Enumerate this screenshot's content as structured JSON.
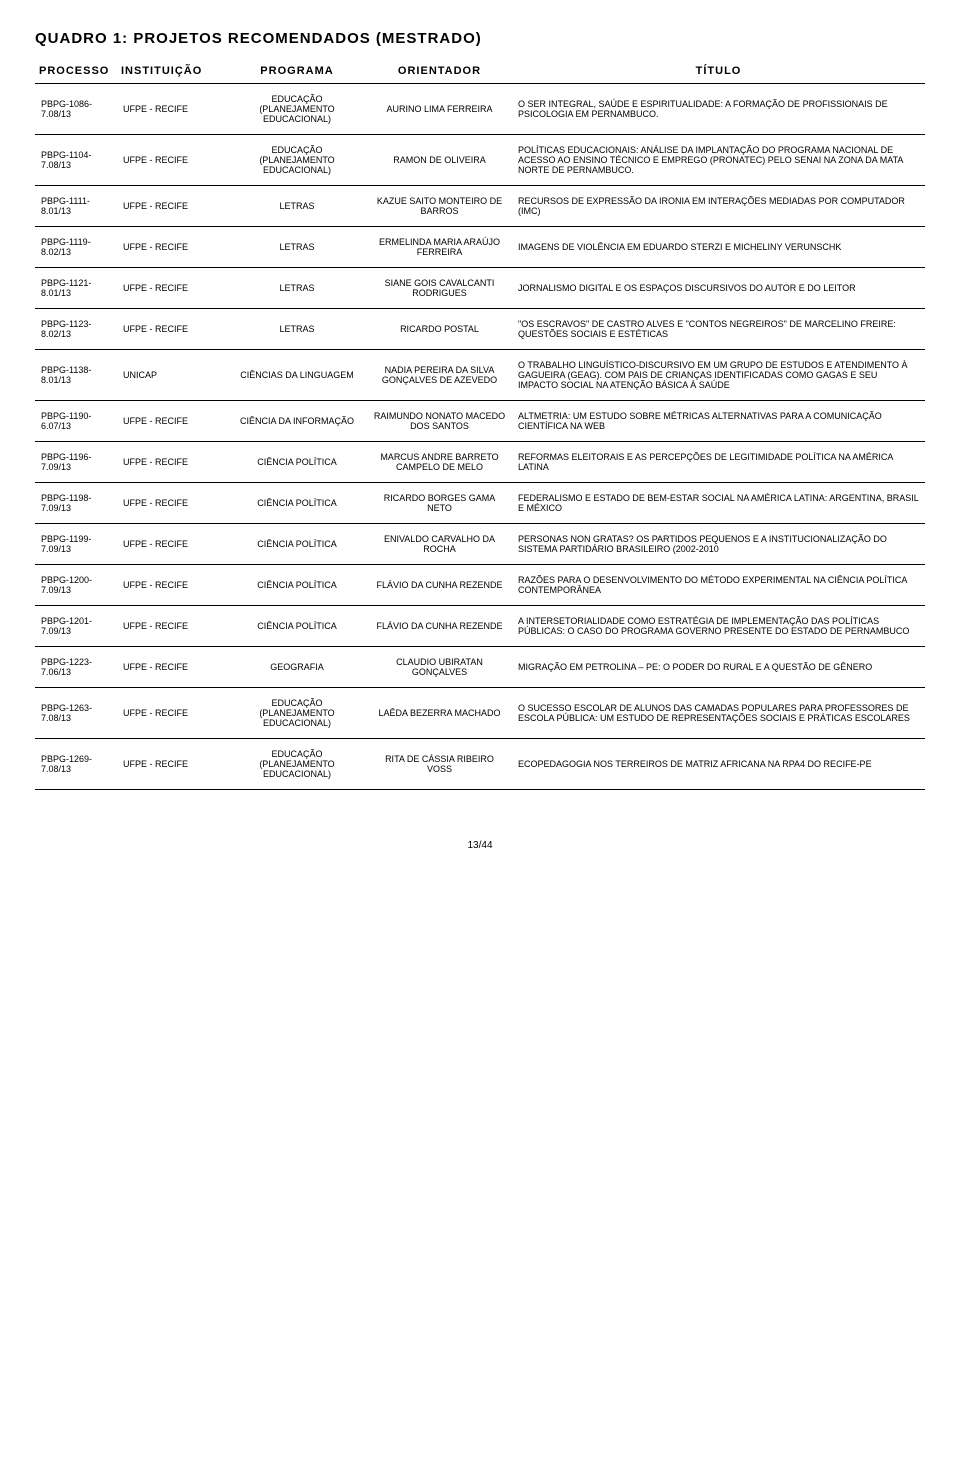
{
  "title": "QUADRO 1: PROJETOS RECOMENDADOS (MESTRADO)",
  "headers": {
    "processo": "PROCESSO",
    "instituicao": "INSTITUIÇÃO",
    "programa": "PROGRAMA",
    "orientador": "ORIENTADOR",
    "titulo": "TÍTULO"
  },
  "rows": [
    {
      "processo": "PBPG-1086-7.08/13",
      "instituicao": "UFPE - RECIFE",
      "programa": "EDUCAÇÃO (PLANEJAMENTO EDUCACIONAL)",
      "orientador": "AURINO LIMA FERREIRA",
      "titulo": "O SER INTEGRAL, SAÚDE E ESPIRITUALIDADE: A FORMAÇÃO DE PROFISSIONAIS DE PSICOLOGIA EM PERNAMBUCO."
    },
    {
      "processo": "PBPG-1104-7.08/13",
      "instituicao": "UFPE - RECIFE",
      "programa": "EDUCAÇÃO (PLANEJAMENTO EDUCACIONAL)",
      "orientador": "RAMON DE OLIVEIRA",
      "titulo": "POLÍTICAS EDUCACIONAIS: ANÁLISE DA IMPLANTAÇÃO DO PROGRAMA NACIONAL DE ACESSO AO ENSINO TÉCNICO E EMPREGO (PRONATEC) PELO SENAI NA ZONA DA MATA NORTE DE PERNAMBUCO."
    },
    {
      "processo": "PBPG-1111-8.01/13",
      "instituicao": "UFPE - RECIFE",
      "programa": "LETRAS",
      "orientador": "KAZUE SAITO MONTEIRO DE BARROS",
      "titulo": "RECURSOS DE EXPRESSÃO DA IRONIA EM INTERAÇÕES MEDIADAS POR COMPUTADOR (IMC)"
    },
    {
      "processo": "PBPG-1119-8.02/13",
      "instituicao": "UFPE - RECIFE",
      "programa": "LETRAS",
      "orientador": "ERMELINDA MARIA ARAÚJO FERREIRA",
      "titulo": "IMAGENS DE VIOLÊNCIA EM EDUARDO STERZI E MICHELINY VERUNSCHK"
    },
    {
      "processo": "PBPG-1121-8.01/13",
      "instituicao": "UFPE - RECIFE",
      "programa": "LETRAS",
      "orientador": "SIANE GOIS CAVALCANTI RODRIGUES",
      "titulo": "JORNALISMO DIGITAL E OS ESPAÇOS DISCURSIVOS DO AUTOR E DO LEITOR"
    },
    {
      "processo": "PBPG-1123-8.02/13",
      "instituicao": "UFPE - RECIFE",
      "programa": "LETRAS",
      "orientador": "RICARDO POSTAL",
      "titulo": "\"OS ESCRAVOS\" DE CASTRO ALVES E \"CONTOS NEGREIROS\" DE MARCELINO FREIRE: QUESTÕES SOCIAIS E ESTÉTICAS"
    },
    {
      "processo": "PBPG-1138-8.01/13",
      "instituicao": "UNICAP",
      "programa": "CIÊNCIAS DA LINGUAGEM",
      "orientador": "NADIA PEREIRA DA SILVA GONÇALVES DE AZEVEDO",
      "titulo": "O TRABALHO LINGUÍSTICO-DISCURSIVO EM UM GRUPO DE ESTUDOS E ATENDIMENTO À GAGUEIRA (GEAG). COM PAIS DE CRIANÇAS IDENTIFICADAS COMO GAGAS E SEU IMPACTO SOCIAL NA ATENÇÃO BÁSICA À SAÚDE"
    },
    {
      "processo": "PBPG-1190-6.07/13",
      "instituicao": "UFPE - RECIFE",
      "programa": "CIÊNCIA DA INFORMAÇÃO",
      "orientador": "RAIMUNDO NONATO MACEDO DOS SANTOS",
      "titulo": "ALTMETRIA: UM ESTUDO SOBRE MÉTRICAS ALTERNATIVAS PARA A COMUNICAÇÃO CIENTÍFICA NA WEB"
    },
    {
      "processo": "PBPG-1196-7.09/13",
      "instituicao": "UFPE - RECIFE",
      "programa": "CIÊNCIA POLÍTICA",
      "orientador": "MARCUS ANDRE BARRETO CAMPELO DE MELO",
      "titulo": "REFORMAS ELEITORAIS E AS PERCEPÇÕES DE LEGITIMIDADE POLÍTICA NA AMÉRICA LATINA"
    },
    {
      "processo": "PBPG-1198-7.09/13",
      "instituicao": "UFPE - RECIFE",
      "programa": "CIÊNCIA POLÍTICA",
      "orientador": "RICARDO BORGES GAMA NETO",
      "titulo": "FEDERALISMO E ESTADO DE BEM-ESTAR SOCIAL NA AMÉRICA LATINA: ARGENTINA, BRASIL E MÉXICO"
    },
    {
      "processo": "PBPG-1199-7.09/13",
      "instituicao": "UFPE - RECIFE",
      "programa": "CIÊNCIA POLÍTICA",
      "orientador": "ENIVALDO CARVALHO DA ROCHA",
      "titulo": "PERSONAS NON GRATAS? OS PARTIDOS PEQUENOS E A INSTITUCIONALIZAÇÃO DO SISTEMA PARTIDÁRIO BRASILEIRO (2002-2010"
    },
    {
      "processo": "PBPG-1200-7.09/13",
      "instituicao": "UFPE - RECIFE",
      "programa": "CIÊNCIA POLÍTICA",
      "orientador": "FLÁVIO DA CUNHA REZENDE",
      "titulo": "RAZÕES PARA O DESENVOLVIMENTO DO MÉTODO EXPERIMENTAL NA CIÊNCIA POLÍTICA CONTEMPORÂNEA"
    },
    {
      "processo": "PBPG-1201-7.09/13",
      "instituicao": "UFPE - RECIFE",
      "programa": "CIÊNCIA POLÍTICA",
      "orientador": "FLÁVIO DA CUNHA REZENDE",
      "titulo": "A INTERSETORIALIDADE COMO ESTRATÉGIA DE IMPLEMENTAÇÃO DAS POLÍTICAS PÚBLICAS: O CASO DO PROGRAMA GOVERNO PRESENTE DO ESTADO DE PERNAMBUCO"
    },
    {
      "processo": "PBPG-1223-7.06/13",
      "instituicao": "UFPE - RECIFE",
      "programa": "GEOGRAFIA",
      "orientador": "CLAUDIO UBIRATAN GONÇALVES",
      "titulo": "MIGRAÇÃO EM PETROLINA – PE: O PODER DO RURAL E A QUESTÃO DE GÊNERO"
    },
    {
      "processo": "PBPG-1263-7.08/13",
      "instituicao": "UFPE - RECIFE",
      "programa": "EDUCAÇÃO (PLANEJAMENTO EDUCACIONAL)",
      "orientador": "LAÊDA BEZERRA MACHADO",
      "titulo": "O SUCESSO ESCOLAR DE ALUNOS DAS CAMADAS POPULARES PARA PROFESSORES DE ESCOLA PÚBLICA: UM ESTUDO DE REPRESENTAÇÕES SOCIAIS E PRÁTICAS ESCOLARES"
    },
    {
      "processo": "PBPG-1269-7.08/13",
      "instituicao": "UFPE - RECIFE",
      "programa": "EDUCAÇÃO (PLANEJAMENTO EDUCACIONAL)",
      "orientador": "RITA DE CÁSSIA RIBEIRO VOSS",
      "titulo": "ECOPEDAGOGIA NOS TERREIROS DE MATRIZ AFRICANA NA RPA4 DO RECIFE-PE"
    }
  ],
  "footer": "13/44"
}
